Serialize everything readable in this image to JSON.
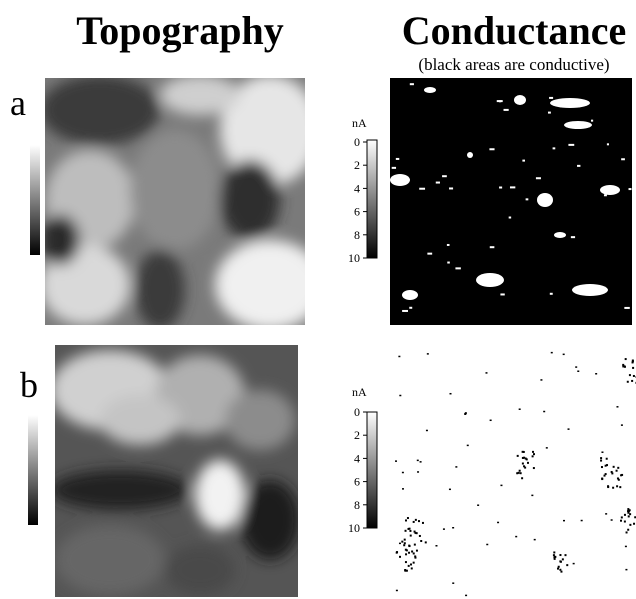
{
  "header": {
    "left_title": "Topography",
    "right_title": "Conductance",
    "right_subtitle": "(black areas are conductive)"
  },
  "panels": [
    {
      "label": "a"
    },
    {
      "label": "b"
    }
  ],
  "colorbars": [
    {
      "unit": "nA",
      "ticks": [
        "0",
        "2",
        "4",
        "6",
        "8",
        "10"
      ]
    },
    {
      "unit": "nA",
      "ticks": [
        "0",
        "2",
        "4",
        "6",
        "8",
        "10"
      ]
    }
  ]
}
